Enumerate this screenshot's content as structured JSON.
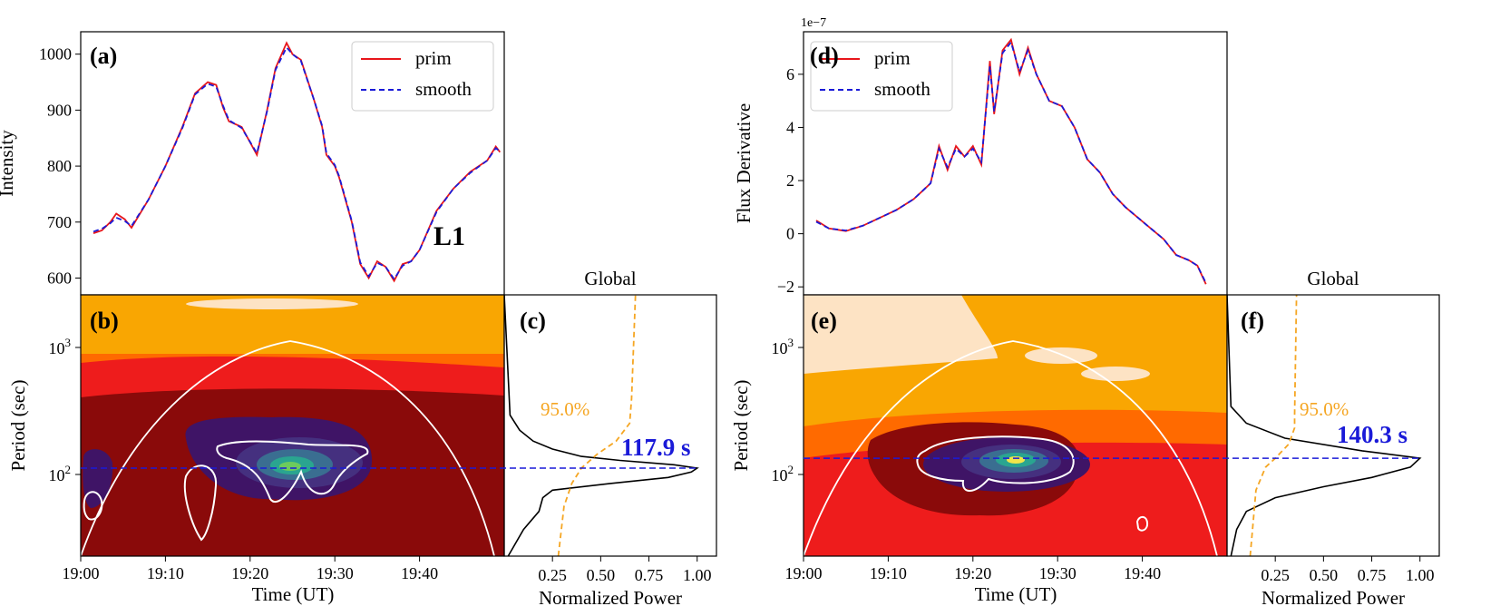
{
  "figure": {
    "x_tick_labels": [
      "19:00",
      "19:10",
      "19:20",
      "19:30",
      "19:40"
    ],
    "time_xlabel": "Time (UT)",
    "global_title": "Global",
    "global_xlabel": "Normalized Power",
    "global_tick_labels": [
      "0.25",
      "0.50",
      "0.75",
      "1.00"
    ],
    "period_ylabel": "Period (sec)",
    "colors": {
      "prim": "#e8161b",
      "smooth": "#1a1ad8",
      "significance": "#f5a623",
      "coi": "#ffffff",
      "period_marker": "#1a1ad8",
      "wavelet_levels": [
        "#fde3c4",
        "#f9a602",
        "#ff6a00",
        "#ee1c1c",
        "#8a0a0a",
        "#3f1466",
        "#45307f",
        "#3a6e91",
        "#2aa590",
        "#6ccb5d",
        "#f1e54a"
      ]
    }
  },
  "panels": [
    {
      "letter": "(a)",
      "ylabel": "Intensity",
      "y_tick_labels": [
        "600",
        "700",
        "800",
        "900",
        "1000"
      ],
      "legend": [
        "prim",
        "smooth"
      ],
      "annotation": "L1"
    },
    {
      "letter": "(b)",
      "period_tick_labels": [
        "10^2",
        "10^3"
      ]
    },
    {
      "letter": "(c)",
      "significance_label": "95.0%",
      "peak_label": "117.9 s"
    },
    {
      "letter": "(d)",
      "ylabel": "Flux Derivative",
      "offset_label": "1e−7",
      "y_tick_labels": [
        "−2",
        "0",
        "2",
        "4",
        "6"
      ],
      "legend": [
        "prim",
        "smooth"
      ]
    },
    {
      "letter": "(e)",
      "period_tick_labels": [
        "10^2",
        "10^3"
      ]
    },
    {
      "letter": "(f)",
      "significance_label": "95.0%",
      "peak_label": "140.3 s"
    }
  ],
  "chart_data": [
    {
      "type": "line",
      "panel": "(a)",
      "title": "",
      "xlabel": "",
      "ylabel": "Intensity",
      "x_unit": "minutes after 19:00 UT",
      "xlim": [
        0,
        50
      ],
      "ylim": [
        570,
        1040
      ],
      "x": [
        1.5,
        2.5,
        3.5,
        4.2,
        5.2,
        6,
        8,
        10,
        12,
        13.5,
        15,
        16,
        16.8,
        17.5,
        19,
        20.8,
        22,
        23,
        24.3,
        25,
        26,
        27.5,
        28.5,
        29,
        30,
        30.5,
        32,
        33,
        34,
        35,
        36,
        37,
        38,
        39,
        40,
        42,
        44,
        46,
        48,
        49,
        49.5
      ],
      "series": [
        {
          "name": "prim",
          "values": [
            680,
            685,
            700,
            715,
            705,
            690,
            740,
            800,
            870,
            930,
            950,
            945,
            905,
            880,
            870,
            820,
            900,
            975,
            1020,
            1000,
            990,
            920,
            870,
            820,
            800,
            780,
            700,
            625,
            600,
            630,
            620,
            595,
            625,
            630,
            650,
            720,
            760,
            790,
            810,
            835,
            825
          ]
        },
        {
          "name": "smooth",
          "values": [
            683,
            688,
            698,
            708,
            702,
            693,
            740,
            800,
            868,
            928,
            947,
            942,
            908,
            882,
            868,
            823,
            898,
            972,
            1012,
            1000,
            988,
            920,
            872,
            823,
            802,
            782,
            702,
            628,
            603,
            627,
            620,
            598,
            622,
            630,
            650,
            718,
            760,
            788,
            810,
            832,
            826
          ]
        }
      ]
    },
    {
      "type": "heatmap",
      "panel": "(b)",
      "xlabel": "Time (UT)",
      "ylabel": "Period (sec)",
      "xlim": [
        0,
        50
      ],
      "y_scale": "log",
      "ylim": [
        25,
        2500
      ],
      "dominant_period_s": 117.9,
      "peak_time_min": 25,
      "cone_of_influence_peak_period_s": 1150,
      "significance_contour": "white"
    },
    {
      "type": "line",
      "panel": "(c)",
      "title": "Global",
      "xlabel": "Normalized Power",
      "xlim": [
        0,
        1.1
      ],
      "y_scale": "log",
      "ylim": [
        25,
        2500
      ],
      "series": [
        {
          "name": "global power",
          "period": [
            25,
            40,
            55,
            70,
            80,
            90,
            100,
            110,
            117.9,
            125,
            135,
            145,
            165,
            190,
            230,
            300,
            2500
          ],
          "power": [
            0.02,
            0.1,
            0.18,
            0.2,
            0.25,
            0.55,
            0.85,
            0.97,
            1.0,
            0.88,
            0.6,
            0.4,
            0.25,
            0.15,
            0.08,
            0.03,
            0.0
          ]
        },
        {
          "name": "95.0%",
          "period": [
            25,
            60,
            90,
            117.9,
            150,
            190,
            260,
            400,
            2500
          ],
          "power": [
            0.28,
            0.31,
            0.35,
            0.4,
            0.48,
            0.58,
            0.65,
            0.66,
            0.68
          ]
        }
      ],
      "peak_period_s": 117.9
    },
    {
      "type": "line",
      "panel": "(d)",
      "title": "",
      "xlabel": "",
      "ylabel": "Flux Derivative",
      "y_offset": "1e-7",
      "x_unit": "minutes after 19:00 UT",
      "xlim": [
        0,
        50
      ],
      "ylim": [
        -2.3,
        7.6
      ],
      "x": [
        1.5,
        3,
        5,
        7,
        9,
        11,
        13,
        14,
        15,
        16,
        17,
        18,
        19,
        20,
        21,
        22,
        22.5,
        23.5,
        24.5,
        25.5,
        26.5,
        27.5,
        29,
        30.5,
        32,
        33.5,
        35,
        36.5,
        38,
        39.5,
        41,
        42.5,
        44,
        45.5,
        46.5,
        47.5
      ],
      "series": [
        {
          "name": "prim",
          "values": [
            0.5,
            0.2,
            0.1,
            0.3,
            0.6,
            0.9,
            1.3,
            1.6,
            1.9,
            3.3,
            2.4,
            3.3,
            2.9,
            3.3,
            2.6,
            6.5,
            4.5,
            6.9,
            7.3,
            6.0,
            7.0,
            6.0,
            5.0,
            4.8,
            4.0,
            2.8,
            2.3,
            1.5,
            1.0,
            0.6,
            0.2,
            -0.2,
            -0.8,
            -1.0,
            -1.2,
            -1.9
          ]
        },
        {
          "name": "smooth",
          "values": [
            0.45,
            0.2,
            0.12,
            0.3,
            0.6,
            0.9,
            1.3,
            1.6,
            1.9,
            3.2,
            2.5,
            3.2,
            2.9,
            3.2,
            2.7,
            6.3,
            4.6,
            6.8,
            7.2,
            6.1,
            6.9,
            6.0,
            5.0,
            4.8,
            4.0,
            2.8,
            2.3,
            1.5,
            1.0,
            0.6,
            0.2,
            -0.2,
            -0.8,
            -1.0,
            -1.2,
            -1.85
          ]
        }
      ]
    },
    {
      "type": "heatmap",
      "panel": "(e)",
      "xlabel": "Time (UT)",
      "ylabel": "Period (sec)",
      "xlim": [
        0,
        50
      ],
      "y_scale": "log",
      "ylim": [
        25,
        2500
      ],
      "dominant_period_s": 140.3,
      "peak_time_min": 25,
      "cone_of_influence_peak_period_s": 1150,
      "significance_contour": "white"
    },
    {
      "type": "line",
      "panel": "(f)",
      "title": "Global",
      "xlabel": "Normalized Power",
      "xlim": [
        0,
        1.1
      ],
      "y_scale": "log",
      "ylim": [
        25,
        2500
      ],
      "series": [
        {
          "name": "global power",
          "period": [
            25,
            40,
            55,
            70,
            85,
            100,
            120,
            140.3,
            160,
            200,
            260,
            350,
            2500
          ],
          "power": [
            0.02,
            0.05,
            0.1,
            0.25,
            0.5,
            0.75,
            0.95,
            1.0,
            0.7,
            0.3,
            0.1,
            0.02,
            0.0
          ]
        },
        {
          "name": "95.0%",
          "period": [
            25,
            80,
            120,
            140.3,
            180,
            240,
            300,
            2500
          ],
          "power": [
            0.12,
            0.15,
            0.2,
            0.25,
            0.32,
            0.35,
            0.35,
            0.36
          ]
        }
      ],
      "peak_period_s": 140.3
    }
  ]
}
